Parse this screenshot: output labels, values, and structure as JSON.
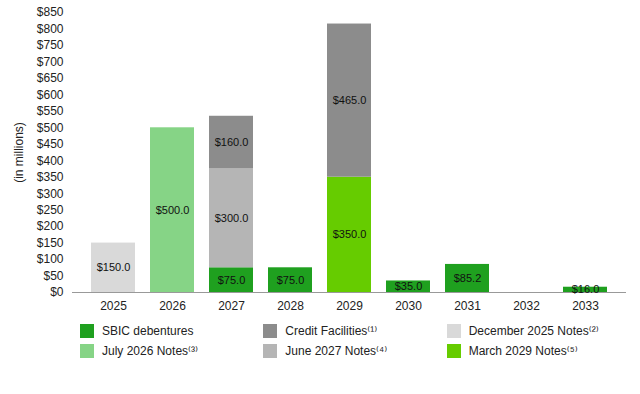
{
  "chart_data": {
    "type": "bar",
    "stacked": true,
    "data_labels": true,
    "grid": false,
    "legend": "bottom",
    "ylabel": "(in millions)",
    "categories": [
      "2025",
      "2026",
      "2027",
      "2028",
      "2029",
      "2030",
      "2031",
      "2032",
      "2033"
    ],
    "ylim": [
      0,
      850
    ],
    "yticks": [
      {
        "value": 0,
        "label": "$0"
      },
      {
        "value": 50,
        "label": "$50"
      },
      {
        "value": 100,
        "label": "$100"
      },
      {
        "value": 150,
        "label": "$150"
      },
      {
        "value": 200,
        "label": "$200"
      },
      {
        "value": 250,
        "label": "$250"
      },
      {
        "value": 300,
        "label": "$300"
      },
      {
        "value": 350,
        "label": "$350"
      },
      {
        "value": 400,
        "label": "$400"
      },
      {
        "value": 450,
        "label": "$450"
      },
      {
        "value": 500,
        "label": "$500"
      },
      {
        "value": 550,
        "label": "$550"
      },
      {
        "value": 600,
        "label": "$600"
      },
      {
        "value": 650,
        "label": "$650"
      },
      {
        "value": 700,
        "label": "$700"
      },
      {
        "value": 750,
        "label": "$750"
      },
      {
        "value": 800,
        "label": "$800"
      },
      {
        "value": 850,
        "label": "$850"
      }
    ],
    "series": [
      {
        "name": "SBIC debentures",
        "color": "#1fa01f",
        "values": [
          null,
          null,
          75,
          75,
          null,
          35,
          85.2,
          null,
          16
        ],
        "value_labels": [
          null,
          null,
          "$75.0",
          "$75.0",
          null,
          "$35.0",
          "$85.2",
          null,
          "$16.0"
        ]
      },
      {
        "name": "Credit Facilities⁽¹⁾",
        "color": "#8c8c8c",
        "values": [
          null,
          null,
          160,
          null,
          465,
          null,
          null,
          null,
          null
        ],
        "value_labels": [
          null,
          null,
          "$160.0",
          null,
          "$465.0",
          null,
          null,
          null,
          null
        ]
      },
      {
        "name": "December 2025 Notes⁽²⁾",
        "color": "#d9d9d9",
        "values": [
          150,
          null,
          null,
          null,
          null,
          null,
          null,
          null,
          null
        ],
        "value_labels": [
          "$150.0",
          null,
          null,
          null,
          null,
          null,
          null,
          null,
          null
        ]
      },
      {
        "name": "July 2026 Notes⁽³⁾",
        "color": "#86d486",
        "values": [
          null,
          500,
          null,
          null,
          null,
          null,
          null,
          null,
          null
        ],
        "value_labels": [
          null,
          "$500.0",
          null,
          null,
          null,
          null,
          null,
          null,
          null
        ]
      },
      {
        "name": "June 2027 Notes⁽⁴⁾",
        "color": "#b5b5b5",
        "values": [
          null,
          null,
          300,
          null,
          null,
          null,
          null,
          null,
          null
        ],
        "value_labels": [
          null,
          null,
          "$300.0",
          null,
          null,
          null,
          null,
          null,
          null
        ]
      },
      {
        "name": "March 2029 Notes⁽⁵⁾",
        "color": "#66cc00",
        "values": [
          null,
          null,
          null,
          null,
          350,
          null,
          null,
          null,
          null
        ],
        "value_labels": [
          null,
          null,
          null,
          null,
          "$350.0",
          null,
          null,
          null,
          null
        ]
      }
    ]
  }
}
